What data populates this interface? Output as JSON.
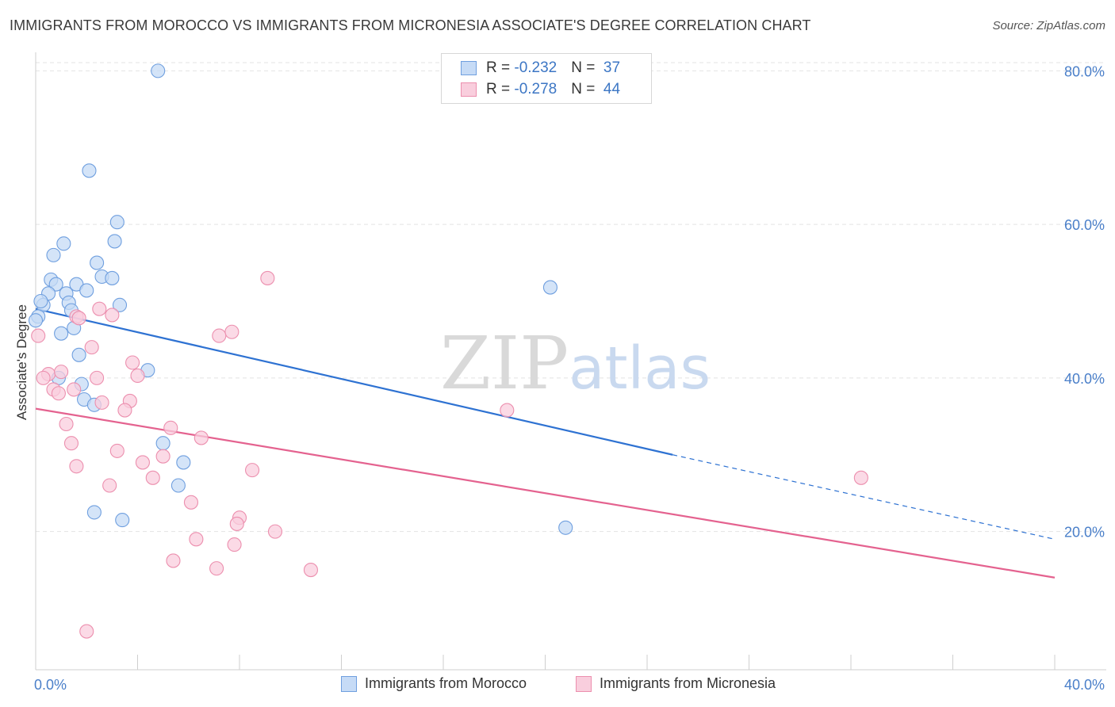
{
  "chart_data": {
    "type": "scatter",
    "title": "IMMIGRANTS FROM MOROCCO VS IMMIGRANTS FROM MICRONESIA ASSOCIATE'S DEGREE CORRELATION CHART",
    "source": "Source: ZipAtlas.com",
    "ylabel": "Associate's Degree",
    "xlim": [
      0,
      40
    ],
    "ylim": [
      2,
      82
    ],
    "y_ticks": [
      {
        "value": 20,
        "label": "20.0%"
      },
      {
        "value": 40,
        "label": "40.0%"
      },
      {
        "value": 60,
        "label": "60.0%"
      },
      {
        "value": 80,
        "label": "80.0%"
      }
    ],
    "x_tick_labels": {
      "min": "0.0%",
      "max": "40.0%"
    },
    "watermark": {
      "zip": "ZIP",
      "atlas": "atlas"
    },
    "series": [
      {
        "name": "Immigrants from Morocco",
        "color": "#6f9fdf",
        "fill": "#c6dbf6",
        "line_color": "#2e72d2",
        "r": "-0.232",
        "n": "37",
        "trend": {
          "x0": 0,
          "y0": 49.0,
          "x1": 25.0,
          "y1": 30.0,
          "x_dash_end": 40,
          "y_dash_end": 19.0
        },
        "points": [
          [
            4.8,
            80.0
          ],
          [
            2.1,
            67.0
          ],
          [
            3.2,
            60.3
          ],
          [
            3.1,
            57.8
          ],
          [
            1.1,
            57.5
          ],
          [
            0.7,
            56.0
          ],
          [
            2.4,
            55.0
          ],
          [
            2.6,
            53.2
          ],
          [
            3.0,
            53.0
          ],
          [
            0.6,
            52.8
          ],
          [
            0.8,
            52.2
          ],
          [
            1.6,
            52.2
          ],
          [
            2.0,
            51.4
          ],
          [
            1.2,
            51.0
          ],
          [
            0.5,
            51.0
          ],
          [
            0.3,
            49.5
          ],
          [
            1.3,
            49.8
          ],
          [
            3.3,
            49.5
          ],
          [
            1.4,
            48.8
          ],
          [
            0.1,
            48.0
          ],
          [
            0.0,
            47.5
          ],
          [
            1.5,
            46.5
          ],
          [
            1.0,
            45.8
          ],
          [
            1.7,
            43.0
          ],
          [
            4.4,
            41.0
          ],
          [
            0.9,
            40.0
          ],
          [
            1.8,
            39.2
          ],
          [
            1.9,
            37.2
          ],
          [
            2.3,
            36.5
          ],
          [
            5.0,
            31.5
          ],
          [
            5.8,
            29.0
          ],
          [
            5.6,
            26.0
          ],
          [
            2.3,
            22.5
          ],
          [
            3.4,
            21.5
          ],
          [
            20.8,
            20.5
          ],
          [
            20.2,
            51.8
          ],
          [
            0.2,
            50.0
          ]
        ]
      },
      {
        "name": "Immigrants from Micronesia",
        "color": "#ec8fae",
        "fill": "#f9cedd",
        "line_color": "#e4628f",
        "r": "-0.278",
        "n": "44",
        "trend": {
          "x0": 0,
          "y0": 36.0,
          "x1": 40,
          "y1": 14.0
        },
        "points": [
          [
            9.1,
            53.0
          ],
          [
            2.5,
            49.0
          ],
          [
            3.0,
            48.2
          ],
          [
            1.6,
            48.0
          ],
          [
            1.7,
            47.8
          ],
          [
            7.7,
            46.0
          ],
          [
            7.2,
            45.5
          ],
          [
            0.1,
            45.5
          ],
          [
            2.2,
            44.0
          ],
          [
            3.8,
            42.0
          ],
          [
            0.5,
            40.5
          ],
          [
            1.0,
            40.8
          ],
          [
            4.0,
            40.3
          ],
          [
            0.3,
            40.0
          ],
          [
            2.4,
            40.0
          ],
          [
            0.7,
            38.5
          ],
          [
            1.5,
            38.5
          ],
          [
            0.9,
            38.0
          ],
          [
            3.7,
            37.0
          ],
          [
            2.6,
            36.8
          ],
          [
            3.5,
            35.8
          ],
          [
            18.5,
            35.8
          ],
          [
            1.2,
            34.0
          ],
          [
            5.3,
            33.5
          ],
          [
            6.5,
            32.2
          ],
          [
            1.4,
            31.5
          ],
          [
            3.2,
            30.5
          ],
          [
            4.2,
            29.0
          ],
          [
            1.6,
            28.5
          ],
          [
            5.0,
            29.8
          ],
          [
            8.5,
            28.0
          ],
          [
            4.6,
            27.0
          ],
          [
            2.9,
            26.0
          ],
          [
            6.1,
            23.8
          ],
          [
            8.0,
            21.8
          ],
          [
            7.9,
            21.0
          ],
          [
            9.4,
            20.0
          ],
          [
            6.3,
            19.0
          ],
          [
            7.8,
            18.3
          ],
          [
            5.4,
            16.2
          ],
          [
            7.1,
            15.2
          ],
          [
            10.8,
            15.0
          ],
          [
            2.0,
            7.0
          ],
          [
            32.4,
            27.0
          ]
        ]
      }
    ]
  }
}
